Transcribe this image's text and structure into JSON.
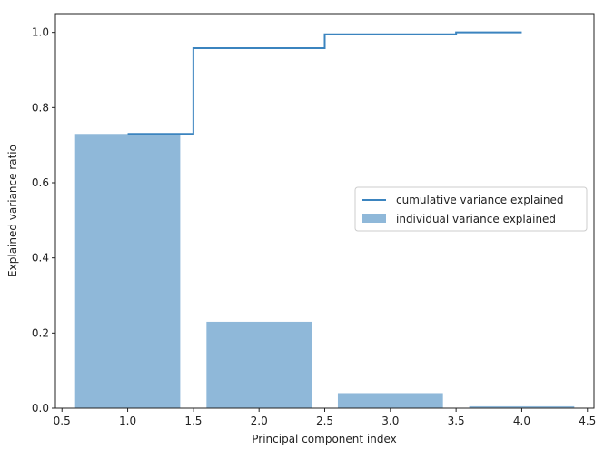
{
  "chart_data": {
    "type": "bar",
    "title": "",
    "xlabel": "Principal component index",
    "ylabel": "Explained variance ratio",
    "xlim": [
      0.45,
      4.55
    ],
    "ylim": [
      0.0,
      1.05
    ],
    "xticks": [
      0.5,
      1.0,
      1.5,
      2.0,
      2.5,
      3.0,
      3.5,
      4.0,
      4.5
    ],
    "xtick_labels": [
      "0.5",
      "1.0",
      "1.5",
      "2.0",
      "2.5",
      "3.0",
      "3.5",
      "4.0",
      "4.5"
    ],
    "yticks": [
      0.0,
      0.2,
      0.4,
      0.6,
      0.8,
      1.0
    ],
    "ytick_labels": [
      "0.0",
      "0.2",
      "0.4",
      "0.6",
      "0.8",
      "1.0"
    ],
    "grid": false,
    "legend_position": "center-right",
    "x": [
      1,
      2,
      3,
      4
    ],
    "series": [
      {
        "name": "individual variance explained",
        "type": "bar",
        "values": [
          0.73,
          0.23,
          0.04,
          0.005
        ],
        "color": "#8fb8d9"
      },
      {
        "name": "cumulative variance explained",
        "type": "step",
        "values": [
          0.73,
          0.958,
          0.995,
          1.0
        ],
        "color": "#3b84bf"
      }
    ]
  }
}
